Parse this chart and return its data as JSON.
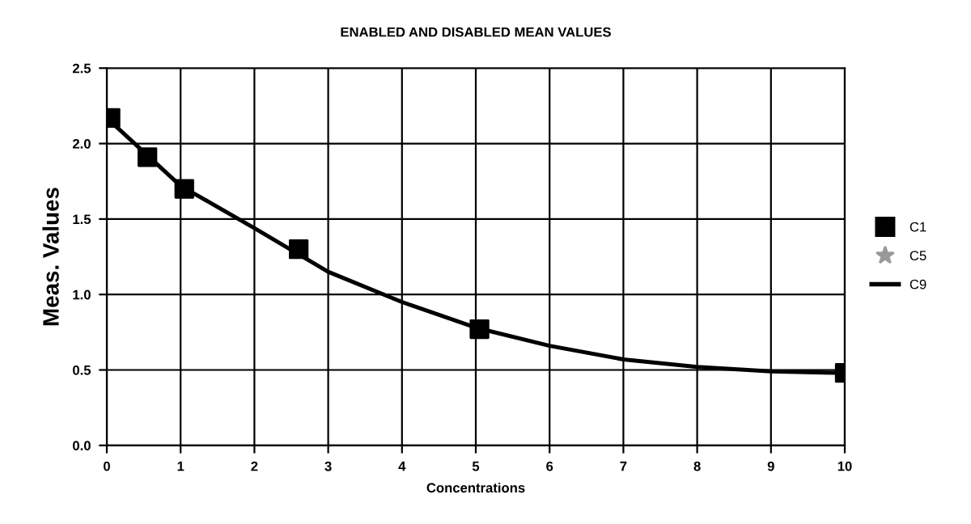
{
  "chart_data": {
    "type": "scatter",
    "title": "ENABLED AND DISABLED MEAN VALUES",
    "xlabel": "Concentrations",
    "ylabel": "Meas. Values",
    "xlim": [
      0,
      10
    ],
    "xticks": [
      0,
      1,
      2,
      3,
      4,
      5,
      6,
      7,
      8,
      9,
      10
    ],
    "ylim": [
      0,
      2.5
    ],
    "yticks": [
      {
        "value": 0,
        "label": "0.0"
      },
      {
        "value": 0.5,
        "label": "0.5"
      },
      {
        "value": 1,
        "label": "1.0"
      },
      {
        "value": 1.5,
        "label": "1.5"
      },
      {
        "value": 2,
        "label": "2.0"
      },
      {
        "value": 2.5,
        "label": "2.5"
      }
    ],
    "grid": true,
    "legend": "right",
    "series": [
      {
        "name": "C1",
        "marker": "square",
        "color": "#000000",
        "x": [
          0.05,
          0.55,
          1.05,
          2.6,
          5.05,
          10
        ],
        "values": [
          2.17,
          1.91,
          1.7,
          1.3,
          0.77,
          0.48
        ]
      },
      {
        "name": "C5",
        "marker": "star",
        "color": "#999999"
      },
      {
        "name": "C9",
        "type": "line",
        "marker": "none",
        "color": "#000000",
        "x": [
          0,
          1,
          2,
          3,
          4,
          5,
          6,
          7,
          8,
          9,
          10
        ],
        "values": [
          2.17,
          1.72,
          1.44,
          1.15,
          0.95,
          0.78,
          0.66,
          0.57,
          0.52,
          0.49,
          0.48
        ]
      }
    ]
  }
}
